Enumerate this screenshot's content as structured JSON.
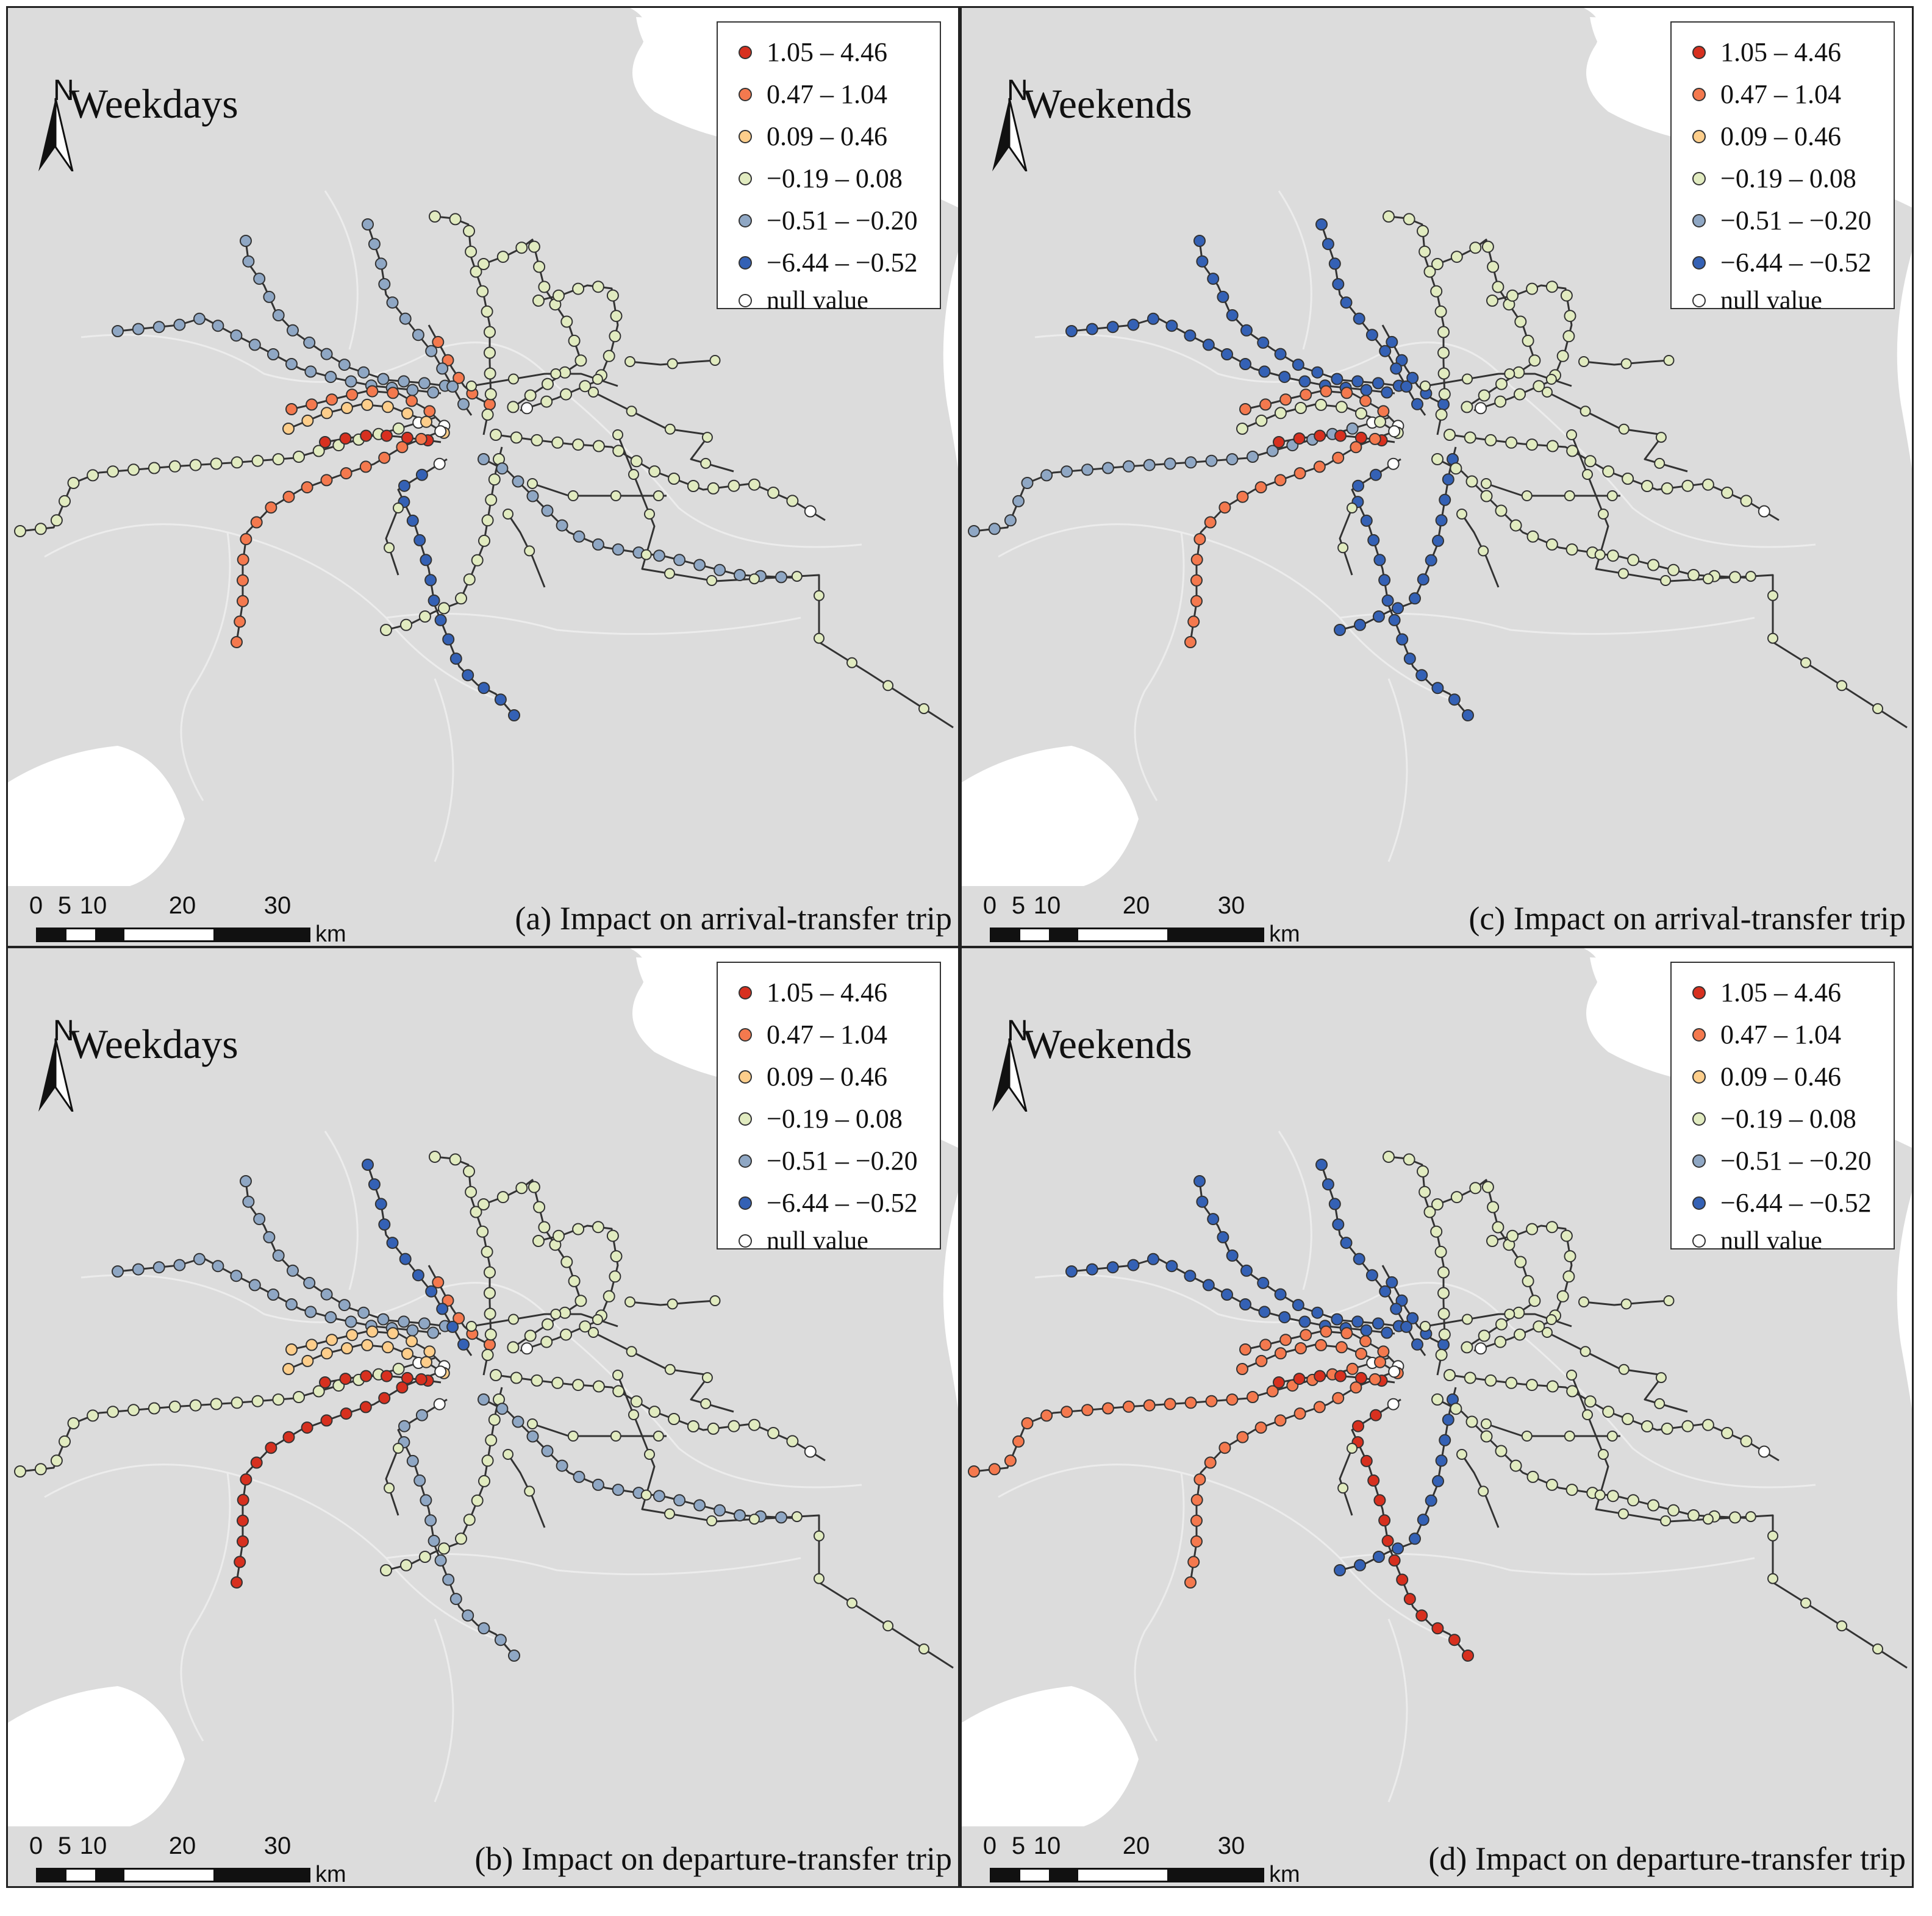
{
  "legend": {
    "classes": [
      {
        "label": "1.05 – 4.46",
        "color": "#d7301f"
      },
      {
        "label": "0.47 – 1.04",
        "color": "#f4794e"
      },
      {
        "label": "0.09 – 0.46",
        "color": "#fdce8b"
      },
      {
        "label": "−0.19 – 0.08",
        "color": "#e1ebc0"
      },
      {
        "label": "−0.51 – −0.20",
        "color": "#8fa7c4"
      },
      {
        "label": "−6.44 – −0.52",
        "color": "#3461b5"
      }
    ],
    "null_label": "null value",
    "null_color": "#ffffff"
  },
  "north_label": "N",
  "scale": {
    "ticks": [
      "0",
      "5",
      "10",
      "20",
      "30"
    ],
    "unit": "km"
  },
  "colors": {
    "land": "#dcdcdc",
    "water": "#ffffff",
    "district_lines": "#ececec",
    "rail_line": "#333333"
  },
  "panels": [
    {
      "id": "a",
      "title": "Weekdays",
      "caption": "(a) Impact on arrival-transfer trip",
      "line_classes": [
        3,
        4,
        4,
        1,
        2,
        0,
        1,
        1,
        4,
        5,
        3,
        3,
        3,
        3,
        4,
        3
      ]
    },
    {
      "id": "b",
      "title": "Weekdays",
      "caption": "(b) Impact on departure-transfer trip",
      "line_classes": [
        3,
        4,
        4,
        2,
        2,
        0,
        0,
        1,
        5,
        4,
        3,
        3,
        3,
        3,
        4,
        3
      ]
    },
    {
      "id": "c",
      "title": "Weekends",
      "caption": "(c) Impact on arrival-transfer trip",
      "line_classes": [
        4,
        5,
        5,
        1,
        3,
        0,
        1,
        5,
        5,
        5,
        3,
        3,
        3,
        5,
        3,
        3
      ]
    },
    {
      "id": "d",
      "title": "Weekends",
      "caption": "(d) Impact on departure-transfer trip",
      "line_classes": [
        1,
        5,
        5,
        1,
        1,
        0,
        1,
        5,
        5,
        0,
        3,
        3,
        3,
        5,
        3,
        3
      ]
    }
  ]
}
